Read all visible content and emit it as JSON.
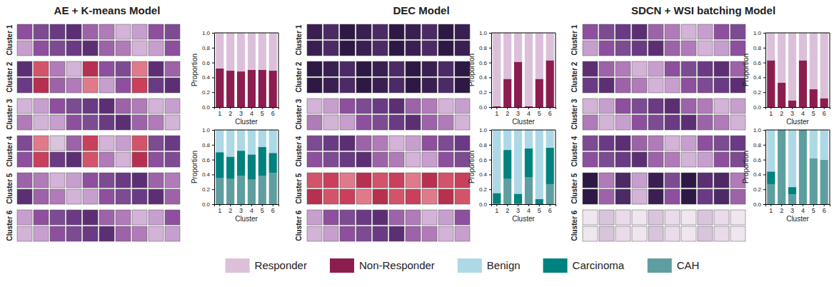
{
  "panels": [
    {
      "title": "AE + K-means Model",
      "tile_labels": [
        "Cluster 1",
        "Cluster 2",
        "Cluster 3",
        "Cluster 4",
        "Cluster 5",
        "Cluster 6"
      ]
    },
    {
      "title": "DEC Model",
      "tile_labels": [
        "Cluster 1",
        "Cluster 2",
        "Cluster 3",
        "Cluster 4",
        "Cluster 5",
        "Cluster 6"
      ]
    },
    {
      "title": "SDCN + WSI batching Model",
      "tile_labels": [
        "Cluster 1",
        "Cluster 2",
        "Cluster 3",
        "Cluster 4",
        "Cluster 5",
        "Cluster 6"
      ]
    }
  ],
  "chart_data": [
    {
      "type": "bar",
      "stacked": true,
      "legend": "bottom",
      "xlabel": "Cluster",
      "ylabel": "Proportion",
      "categories": [
        "1",
        "2",
        "3",
        "4",
        "5",
        "6"
      ],
      "ylim": [
        0,
        1
      ],
      "yticks": [
        {
          "value": 0,
          "label": "0.0"
        },
        0.2,
        0.4,
        0.6,
        0.8,
        {
          "value": 1,
          "label": "1.0"
        }
      ],
      "series": [
        {
          "name": "Non-Responder",
          "color": "#8c1d4f",
          "values": [
            0.52,
            0.49,
            0.48,
            0.5,
            0.5,
            0.49
          ]
        },
        {
          "name": "Responder",
          "color": "#dcc0da",
          "values": [
            0.48,
            0.51,
            0.52,
            0.5,
            0.5,
            0.51
          ]
        }
      ]
    },
    {
      "type": "bar",
      "stacked": true,
      "legend": "bottom",
      "xlabel": "Cluster",
      "ylabel": "Proportion",
      "categories": [
        "1",
        "2",
        "3",
        "4",
        "5",
        "6"
      ],
      "ylim": [
        0,
        1
      ],
      "yticks": [
        {
          "value": 0,
          "label": "0.0"
        },
        0.2,
        0.4,
        0.6,
        0.8,
        {
          "value": 1,
          "label": "1.0"
        }
      ],
      "series": [
        {
          "name": "CAH",
          "color": "#5f9ea0",
          "values": [
            0.35,
            0.34,
            0.38,
            0.33,
            0.38,
            0.42
          ]
        },
        {
          "name": "Carcinoma",
          "color": "#00827f",
          "values": [
            0.35,
            0.3,
            0.34,
            0.34,
            0.39,
            0.27
          ]
        },
        {
          "name": "Benign",
          "color": "#add8e6",
          "values": [
            0.3,
            0.36,
            0.28,
            0.33,
            0.23,
            0.31
          ]
        }
      ]
    },
    {
      "type": "bar",
      "stacked": true,
      "xlabel": "Cluster",
      "ylabel": "Proportion",
      "categories": [
        "1",
        "2",
        "3",
        "4",
        "5",
        "6"
      ],
      "ylim": [
        0,
        1
      ],
      "yticks": [
        {
          "value": 0,
          "label": "0.0"
        },
        0.2,
        0.4,
        0.6,
        0.8,
        {
          "value": 1,
          "label": "1.0"
        }
      ],
      "series": [
        {
          "name": "Non-Responder",
          "color": "#8c1d4f",
          "values": [
            0.01,
            0.38,
            0.61,
            0.01,
            0.38,
            0.63
          ]
        },
        {
          "name": "Responder",
          "color": "#dcc0da",
          "values": [
            0.99,
            0.62,
            0.39,
            0.99,
            0.62,
            0.37
          ]
        }
      ]
    },
    {
      "type": "bar",
      "stacked": true,
      "xlabel": "Cluster",
      "ylabel": "Proportion",
      "categories": [
        "1",
        "2",
        "3",
        "4",
        "5",
        "6"
      ],
      "ylim": [
        0,
        1
      ],
      "yticks": [
        {
          "value": 0,
          "label": "0.0"
        },
        0.2,
        0.4,
        0.6,
        0.8,
        {
          "value": 1,
          "label": "1.0"
        }
      ],
      "series": [
        {
          "name": "CAH",
          "color": "#5f9ea0",
          "values": [
            0.01,
            0.34,
            0.01,
            0.36,
            0.0,
            0.27
          ]
        },
        {
          "name": "Carcinoma",
          "color": "#00827f",
          "values": [
            0.14,
            0.39,
            0.13,
            0.39,
            0.07,
            0.49
          ]
        },
        {
          "name": "Benign",
          "color": "#add8e6",
          "values": [
            0.85,
            0.27,
            0.86,
            0.25,
            0.93,
            0.24
          ]
        }
      ]
    },
    {
      "type": "bar",
      "stacked": true,
      "xlabel": "Cluster",
      "ylabel": "Proportion",
      "categories": [
        "1",
        "2",
        "3",
        "4",
        "5",
        "6"
      ],
      "ylim": [
        0,
        1
      ],
      "yticks": [
        {
          "value": 0,
          "label": "0.0"
        },
        0.2,
        0.4,
        0.6,
        0.8,
        {
          "value": 1,
          "label": "1.0"
        }
      ],
      "series": [
        {
          "name": "Non-Responder",
          "color": "#8c1d4f",
          "values": [
            0.63,
            0.33,
            0.09,
            0.63,
            0.24,
            0.12
          ]
        },
        {
          "name": "Responder",
          "color": "#dcc0da",
          "values": [
            0.37,
            0.67,
            0.91,
            0.37,
            0.76,
            0.88
          ]
        }
      ]
    },
    {
      "type": "bar",
      "stacked": true,
      "xlabel": "Cluster",
      "ylabel": "Proportion",
      "categories": [
        "1",
        "2",
        "3",
        "4",
        "5",
        "6"
      ],
      "ylim": [
        0,
        1
      ],
      "yticks": [
        {
          "value": 0,
          "label": "0.0"
        },
        0.2,
        0.4,
        0.6,
        0.8,
        {
          "value": 1,
          "label": "1.0"
        }
      ],
      "series": [
        {
          "name": "CAH",
          "color": "#5f9ea0",
          "values": [
            0.27,
            1.0,
            0.13,
            1.0,
            0.62,
            0.6
          ]
        },
        {
          "name": "Carcinoma",
          "color": "#00827f",
          "values": [
            0.17,
            0.0,
            0.1,
            0.0,
            0.0,
            0.0
          ]
        },
        {
          "name": "Benign",
          "color": "#add8e6",
          "values": [
            0.56,
            0.0,
            0.77,
            0.0,
            0.38,
            0.4
          ]
        }
      ]
    }
  ]
}
